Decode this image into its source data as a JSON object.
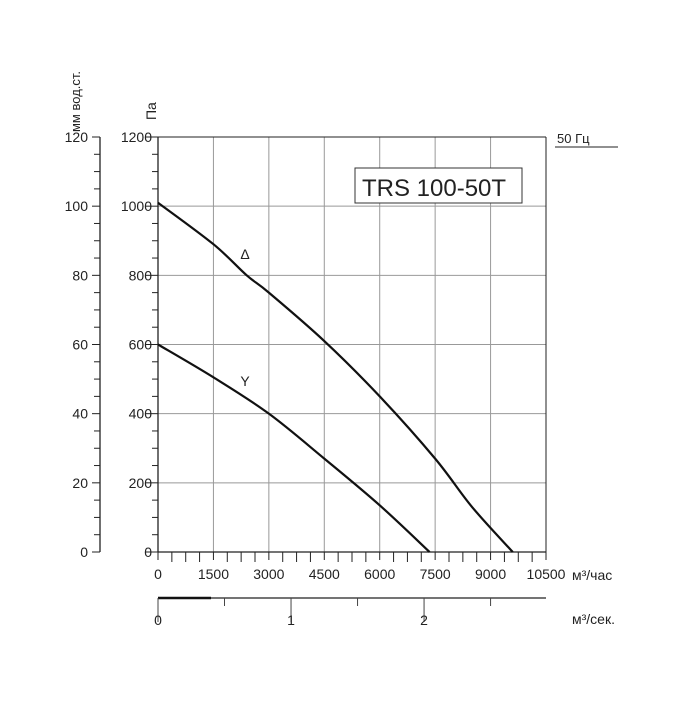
{
  "chart_data": {
    "type": "line",
    "title": "TRS 100-50T",
    "frequency_label": "50 Гц",
    "xlabel": "м³/час",
    "xlabel_secondary": "м³/сек.",
    "ylabel": "Па",
    "ylabel_secondary": "мм вод.ст.",
    "xlim": [
      0,
      10500
    ],
    "ylim": [
      0,
      1200
    ],
    "y2lim": [
      0,
      120
    ],
    "x2lim_m3s": [
      0,
      2.9167
    ],
    "x_ticks": [
      "0",
      "1500",
      "3000",
      "4500",
      "6000",
      "7500",
      "9000",
      "10500"
    ],
    "y_ticks": [
      "0",
      "200",
      "400",
      "600",
      "800",
      "1000",
      "1200"
    ],
    "y2_ticks": [
      "0",
      "20",
      "40",
      "60",
      "80",
      "100",
      "120"
    ],
    "x2_ticks": [
      "0",
      "1",
      "2"
    ],
    "grid": true,
    "series": [
      {
        "name": "Δ",
        "x": [
          0,
          1500,
          2400,
          3000,
          4500,
          6000,
          7500,
          8500,
          9600
        ],
        "y": [
          1010,
          890,
          800,
          750,
          610,
          450,
          270,
          130,
          0
        ]
      },
      {
        "name": "Y",
        "x": [
          0,
          1500,
          3000,
          4500,
          6000,
          7350
        ],
        "y": [
          600,
          505,
          400,
          270,
          135,
          0
        ]
      }
    ],
    "line_color": "#111111"
  }
}
